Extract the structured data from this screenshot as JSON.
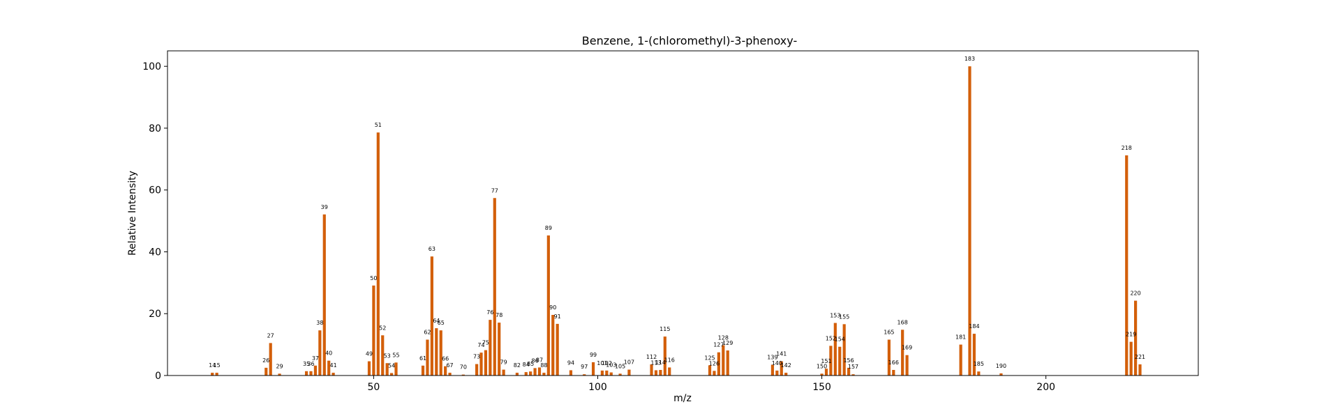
{
  "chart_data": {
    "type": "bar",
    "title": "Benzene, 1-(chloromethyl)-3-phenoxy-",
    "xlabel": "m/z",
    "ylabel": "Relative Intensity",
    "xlim": [
      4,
      234
    ],
    "ylim": [
      0,
      105
    ],
    "xticks": [
      50,
      100,
      150,
      200
    ],
    "yticks": [
      0,
      20,
      40,
      60,
      80,
      100
    ],
    "bar_color": "#d35f0a",
    "grid": false,
    "x": [
      14,
      15,
      26,
      27,
      29,
      35,
      36,
      37,
      38,
      39,
      40,
      41,
      49,
      50,
      51,
      52,
      53,
      54,
      55,
      61,
      62,
      63,
      64,
      65,
      66,
      67,
      70,
      73,
      74,
      75,
      76,
      77,
      78,
      79,
      82,
      84,
      85,
      86,
      87,
      88,
      89,
      90,
      91,
      94,
      97,
      99,
      101,
      102,
      103,
      105,
      107,
      112,
      113,
      114,
      115,
      116,
      125,
      126,
      127,
      128,
      129,
      139,
      140,
      141,
      142,
      150,
      151,
      152,
      153,
      154,
      155,
      156,
      157,
      165,
      166,
      168,
      169,
      181,
      183,
      184,
      185,
      190,
      218,
      219,
      220,
      221
    ],
    "values": [
      0.9,
      0.9,
      2.5,
      10.5,
      0.6,
      1.4,
      1.4,
      3.2,
      14.6,
      52.1,
      4.8,
      0.9,
      4.6,
      29.1,
      78.6,
      13.0,
      4.0,
      0.8,
      4.2,
      3.2,
      11.6,
      38.5,
      15.3,
      14.6,
      3.0,
      0.9,
      0.3,
      3.7,
      7.4,
      8.2,
      18.0,
      57.4,
      17.1,
      1.9,
      0.9,
      1.1,
      1.3,
      2.4,
      2.6,
      0.9,
      45.3,
      19.6,
      16.7,
      1.7,
      0.4,
      4.3,
      1.6,
      1.6,
      1.0,
      0.6,
      1.9,
      3.6,
      1.7,
      1.8,
      12.6,
      2.6,
      3.3,
      1.5,
      7.5,
      9.8,
      8.1,
      3.5,
      1.6,
      4.6,
      0.9,
      0.6,
      2.2,
      9.6,
      17.0,
      9.3,
      16.6,
      2.5,
      0.4,
      11.6,
      1.8,
      14.8,
      6.6,
      10.0,
      100.0,
      13.5,
      1.3,
      0.7,
      71.2,
      10.9,
      24.2,
      3.6
    ],
    "labels": [
      "14",
      "15",
      "26",
      "27",
      "29",
      "35",
      "36",
      "37",
      "38",
      "39",
      "40",
      "41",
      "49",
      "50",
      "51",
      "52",
      "53",
      "54",
      "55",
      "61",
      "62",
      "63",
      "64",
      "65",
      "66",
      "67",
      "70",
      "73",
      "74",
      "75",
      "76",
      "77",
      "78",
      "79",
      "82",
      "84",
      "85",
      "86",
      "87",
      "88",
      "89",
      "90",
      "91",
      "94",
      "97",
      "99",
      "101",
      "102",
      "103",
      "105",
      "107",
      "112",
      "113",
      "114",
      "115",
      "116",
      "125",
      "126",
      "127",
      "128",
      "129",
      "139",
      "140",
      "141",
      "142",
      "150",
      "151",
      "152",
      "153",
      "154",
      "155",
      "156",
      "157",
      "165",
      "166",
      "168",
      "169",
      "181",
      "183",
      "184",
      "185",
      "190",
      "218",
      "219",
      "220",
      "221"
    ]
  }
}
